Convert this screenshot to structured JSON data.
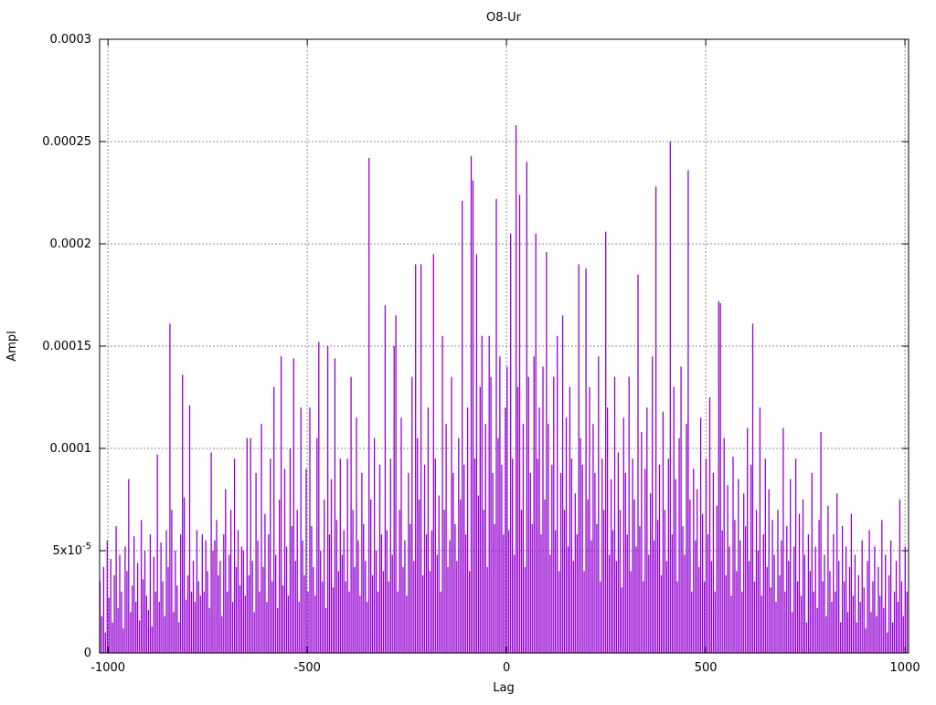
{
  "chart_data": {
    "type": "bar",
    "subtype": "impulses",
    "title": "O8-Ur",
    "xlabel": "Lag",
    "ylabel": "Ampl",
    "xlim": [
      -1021,
      1009
    ],
    "ylim": [
      0,
      0.0003
    ],
    "grid": true,
    "legend": "none",
    "line_color": "#9400d3",
    "grid_color": "#8c8c8c",
    "border_color": "#000000",
    "xticks": [
      {
        "value": -1000,
        "label": "-1000"
      },
      {
        "value": -500,
        "label": "-500"
      },
      {
        "value": 0,
        "label": "0"
      },
      {
        "value": 500,
        "label": "500"
      },
      {
        "value": 1000,
        "label": "1000"
      }
    ],
    "yticks": [
      {
        "value": 0,
        "label": "0"
      },
      {
        "value": 50,
        "label": "5x10^-5"
      },
      {
        "value": 100,
        "label": "0.0001"
      },
      {
        "value": 150,
        "label": "0.00015"
      },
      {
        "value": 200,
        "label": "0.0002"
      },
      {
        "value": 250,
        "label": "0.00025"
      },
      {
        "value": 300,
        "label": "0.0003"
      }
    ],
    "value_unit": 1e-06,
    "yscale_units": 300,
    "series": {
      "name": "amplitude-vs-lag",
      "x_start": -1020,
      "x_step": 4.5,
      "values_1e6": [
        35,
        18,
        42,
        10,
        55,
        27,
        46,
        15,
        38,
        62,
        22,
        48,
        30,
        12,
        52,
        40,
        85,
        20,
        33,
        57,
        25,
        44,
        16,
        65,
        36,
        50,
        28,
        21,
        58,
        13,
        47,
        30,
        97,
        25,
        54,
        35,
        18,
        60,
        42,
        161,
        70,
        20,
        50,
        33,
        15,
        58,
        136,
        76,
        26,
        38,
        121,
        30,
        45,
        25,
        60,
        35,
        28,
        58,
        30,
        55,
        40,
        22,
        98,
        50,
        55,
        65,
        38,
        45,
        18,
        58,
        80,
        30,
        48,
        70,
        25,
        95,
        42,
        60,
        33,
        52,
        50,
        28,
        105,
        38,
        105,
        45,
        20,
        88,
        55,
        30,
        112,
        42,
        68,
        25,
        58,
        95,
        35,
        130,
        48,
        22,
        75,
        145,
        33,
        90,
        52,
        28,
        100,
        62,
        144,
        45,
        70,
        25,
        120,
        55,
        38,
        90,
        30,
        120,
        62,
        42,
        28,
        105,
        152,
        50,
        35,
        75,
        22,
        150,
        58,
        85,
        32,
        144,
        65,
        40,
        95,
        48,
        60,
        35,
        95,
        30,
        135,
        70,
        42,
        115,
        55,
        28,
        88,
        63,
        45,
        25,
        242,
        75,
        38,
        105,
        50,
        30,
        92,
        58,
        40,
        170,
        60,
        35,
        95,
        48,
        150,
        165,
        30,
        70,
        115,
        42,
        55,
        28,
        88,
        63,
        135,
        45,
        190,
        105,
        75,
        190,
        38,
        92,
        58,
        120,
        40,
        60,
        195,
        95,
        48,
        77,
        30,
        155,
        70,
        112,
        42,
        55,
        135,
        88,
        63,
        45,
        105,
        75,
        221,
        92,
        58,
        120,
        40,
        243,
        231,
        95,
        195,
        77,
        130,
        155,
        70,
        112,
        42,
        155,
        135,
        88,
        63,
        222,
        105,
        145,
        92,
        58,
        120,
        140,
        60,
        205,
        95,
        48,
        258,
        130,
        224,
        70,
        112,
        42,
        240,
        135,
        88,
        63,
        145,
        205,
        95,
        120,
        58,
        140,
        75,
        196,
        112,
        48,
        92,
        135,
        60,
        155,
        40,
        88,
        165,
        70,
        115,
        52,
        130,
        95,
        45,
        78,
        58,
        190,
        105,
        92,
        40,
        188,
        75,
        130,
        55,
        112,
        88,
        63,
        145,
        35,
        95,
        70,
        206,
        120,
        48,
        85,
        60,
        135,
        45,
        98,
        70,
        32,
        115,
        88,
        58,
        135,
        40,
        95,
        75,
        52,
        185,
        62,
        108,
        35,
        90,
        120,
        48,
        78,
        145,
        55,
        228,
        65,
        92,
        38,
        118,
        70,
        45,
        95,
        250,
        58,
        130,
        85,
        35,
        105,
        140,
        62,
        48,
        112,
        236,
        75,
        30,
        90,
        55,
        80,
        42,
        115,
        68,
        35,
        95,
        58,
        125,
        45,
        88,
        30,
        72,
        172,
        171,
        60,
        105,
        38,
        82,
        52,
        28,
        96,
        65,
        40,
        85,
        55,
        30,
        78,
        62,
        110,
        45,
        92,
        161,
        35,
        70,
        50,
        120,
        28,
        58,
        95,
        42,
        80,
        32,
        65,
        48,
        25,
        70,
        38,
        55,
        110,
        30,
        62,
        45,
        85,
        20,
        52,
        95,
        35,
        68,
        28,
        75,
        48,
        15,
        58,
        40,
        88,
        30,
        52,
        22,
        65,
        108,
        35,
        48,
        18,
        72,
        40,
        25,
        58,
        30,
        78,
        45,
        15,
        62,
        35,
        52,
        20,
        42,
        68,
        28,
        48,
        15,
        38,
        25,
        55,
        32,
        12,
        45,
        60,
        20,
        35,
        52,
        18,
        42,
        28,
        65,
        22,
        48,
        10,
        38,
        55,
        15,
        30,
        45,
        25,
        75,
        35,
        18,
        52,
        30
      ]
    }
  }
}
